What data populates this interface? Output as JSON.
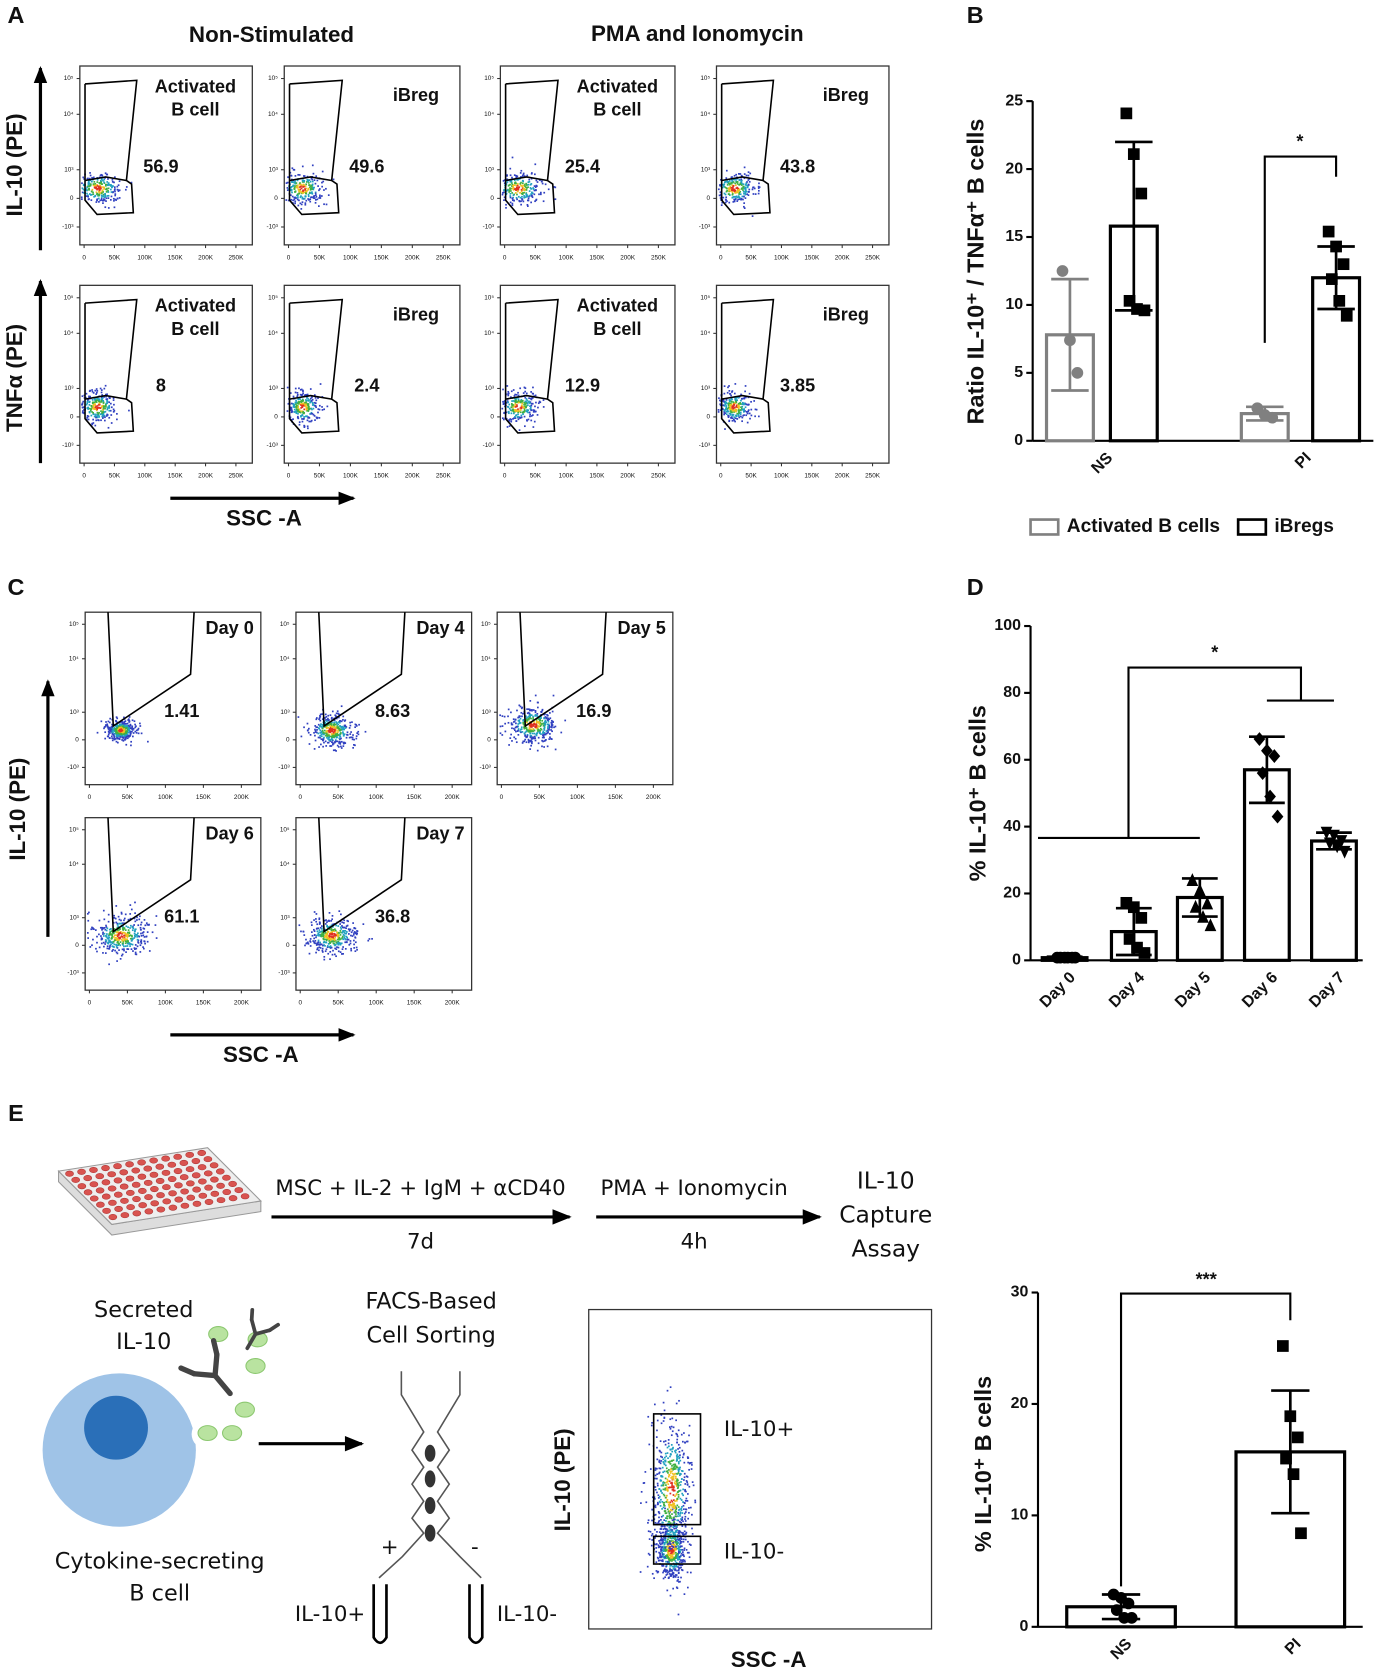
{
  "panel_labels": [
    "A",
    "B",
    "C",
    "D",
    "E"
  ],
  "panel_a": {
    "column_titles": [
      "Non-Stimulated",
      "PMA and Ionomycin"
    ],
    "row_labels": [
      "IL-10 (PE)",
      "TNFα (PE)"
    ],
    "x_label": "SSC -A",
    "plots": [
      {
        "label": [
          "Activated",
          "B cell"
        ],
        "value": 56.9
      },
      {
        "label": [
          "iBreg"
        ],
        "value": 49.6
      },
      {
        "label": [
          "Activated",
          "B cell"
        ],
        "value": 25.4
      },
      {
        "label": [
          "iBreg"
        ],
        "value": 43.8
      },
      {
        "label": [
          "Activated",
          "B cell"
        ],
        "value": 8
      },
      {
        "label": [
          "iBreg"
        ],
        "value": 2.4
      },
      {
        "label": [
          "Activated",
          "B cell"
        ],
        "value": 12.9
      },
      {
        "label": [
          "iBreg"
        ],
        "value": 3.85
      }
    ]
  },
  "panel_c": {
    "y_label": "IL-10 (PE)",
    "x_label": "SSC -A",
    "plots": [
      {
        "label": "Day 0",
        "value": 1.41
      },
      {
        "label": "Day 4",
        "value": 8.63
      },
      {
        "label": "Day 5",
        "value": 16.9
      },
      {
        "label": "Day 6",
        "value": 61.1
      },
      {
        "label": "Day 7",
        "value": 36.8
      }
    ]
  },
  "flow_axes": {
    "y_ticks": [
      "10⁵",
      "10⁴",
      "10³",
      "0",
      "-10³"
    ],
    "x_ticks_a": [
      "0",
      "50K",
      "100K",
      "150K",
      "200K",
      "250K"
    ],
    "x_ticks_c": [
      "0",
      "50K",
      "100K",
      "150K",
      "200K"
    ]
  },
  "panel_e": {
    "steps": [
      {
        "above": "MSC + IL-2 + IgM + αCD40",
        "below": "7d"
      },
      {
        "above": "PMA + Ionomycin",
        "below": "4h"
      }
    ],
    "assay": [
      "IL-10",
      "Capture",
      "Assay"
    ],
    "secreted": [
      "Secreted",
      "IL-10"
    ],
    "cell": [
      "Cytokine-secreting",
      "B cell"
    ],
    "sorting": [
      "FACS-Based",
      "Cell Sorting"
    ],
    "sort_signs": [
      "+",
      "-"
    ],
    "tubes": [
      "IL-10+",
      "IL-10-"
    ],
    "sort_plot": {
      "gates": [
        "IL-10+",
        "IL-10-"
      ],
      "y_label": "IL-10 (PE)",
      "x_label": "SSC -A"
    }
  },
  "chart_data": [
    {
      "type": "bar",
      "y_label": "Ratio IL-10⁺ / TNFα⁺ B cells",
      "categories": [
        "NS",
        "PI"
      ],
      "ylim": [
        0,
        25
      ],
      "yticks": [
        0,
        5,
        10,
        15,
        20,
        25
      ],
      "series": [
        {
          "name": "Activated B cells",
          "color": "#808080",
          "marker": "circle",
          "values": [
            7.8,
            2.0
          ],
          "errors": [
            4.1,
            0.5
          ],
          "points": [
            [
              12.5,
              7.4,
              5.0
            ],
            [
              2.4,
              1.9,
              1.7
            ]
          ]
        },
        {
          "name": "iBregs",
          "color": "#000000",
          "marker": "square",
          "values": [
            15.8,
            12.0
          ],
          "errors": [
            6.2,
            2.3
          ],
          "points": [
            [
              24.1,
              21.1,
              18.2,
              10.3,
              9.7,
              9.6
            ],
            [
              15.4,
              14.3,
              13.0,
              11.9,
              10.3,
              9.2
            ]
          ]
        }
      ],
      "significance": "*",
      "legend": "bottom"
    },
    {
      "type": "bar",
      "y_label": "% IL-10⁺ B cells",
      "categories": [
        "Day 0",
        "Day 4",
        "Day 5",
        "Day 6",
        "Day 7"
      ],
      "ylim": [
        0,
        100
      ],
      "yticks": [
        0,
        20,
        40,
        60,
        80,
        100
      ],
      "color": "#000000",
      "markers": [
        "circle",
        "square",
        "triangle",
        "diamond",
        "triangle-down"
      ],
      "values": [
        0.8,
        8.6,
        18.8,
        57.0,
        35.7
      ],
      "errors": [
        0.3,
        7.0,
        5.7,
        9.9,
        2.5
      ],
      "points": [
        [
          0.8,
          0.8,
          0.8,
          0.8,
          0.8,
          0.8
        ],
        [
          17.2,
          15.9,
          12.7,
          6.4,
          3.8,
          2.2
        ],
        [
          24.0,
          21.0,
          17.0,
          16.0,
          13.0,
          10.5
        ],
        [
          66.2,
          62.7,
          61.1,
          56.0,
          49.0,
          43.0
        ],
        [
          38.2,
          37.3,
          35.7,
          35.0,
          34.1,
          32.5
        ]
      ],
      "significance": "*"
    },
    {
      "type": "bar",
      "y_label": "% IL-10⁺ B cells",
      "categories": [
        "NS",
        "PI"
      ],
      "ylim": [
        0,
        30
      ],
      "yticks": [
        0,
        10,
        20,
        30
      ],
      "color": "#000000",
      "markers": [
        "circle",
        "square"
      ],
      "values": [
        1.8,
        15.7
      ],
      "errors": [
        1.1,
        5.5
      ],
      "points": [
        [
          2.9,
          2.6,
          2.1,
          1.5,
          0.8,
          0.8
        ],
        [
          25.2,
          18.9,
          17.0,
          15.1,
          13.7,
          8.4
        ]
      ],
      "significance": "***"
    }
  ]
}
